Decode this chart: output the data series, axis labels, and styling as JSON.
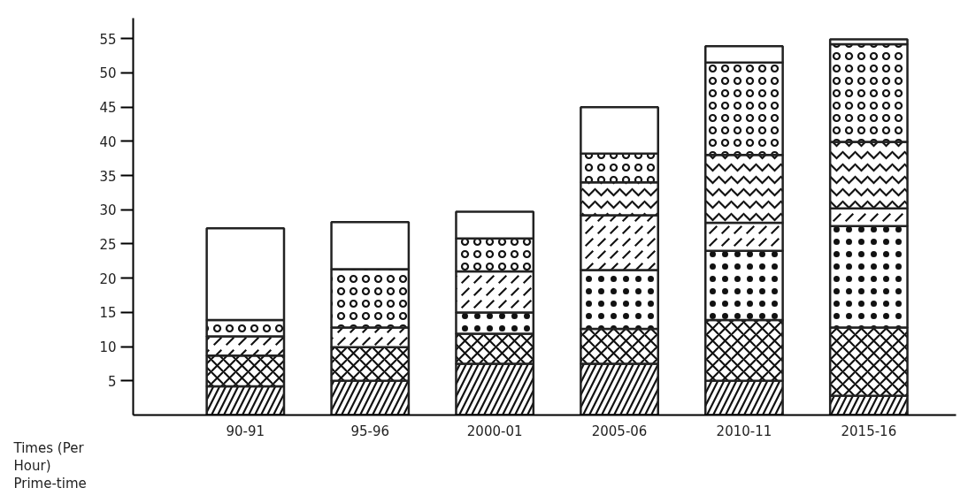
{
  "chart_data": {
    "type": "bar",
    "stacked": true,
    "ylabel": "Times (Per Hour) Prime-time",
    "categories": [
      "90-91",
      "95-96",
      "2000-01",
      "2005-06",
      "2010-11",
      "2015-16"
    ],
    "series": [
      {
        "color": "#ffffff",
        "values": [
          4.2,
          5.0,
          7.5,
          7.5,
          5.0,
          2.8
        ]
      },
      {
        "color": "#ffffff",
        "values": [
          4.5,
          4.9,
          4.4,
          5.1,
          8.9,
          10.0
        ]
      },
      {
        "color": "#ffffff",
        "values": [
          null,
          null,
          3.1,
          8.6,
          10.1,
          14.8
        ]
      },
      {
        "color": "#ffffff",
        "values": [
          2.8,
          2.9,
          6.0,
          8.0,
          4.1,
          2.6
        ]
      },
      {
        "color": "#ffffff",
        "values": [
          null,
          null,
          null,
          4.8,
          9.9,
          9.7
        ]
      },
      {
        "color": "#ffffff",
        "values": [
          2.4,
          8.5,
          4.8,
          4.2,
          13.5,
          14.3
        ]
      },
      {
        "color": "#ffffff",
        "values": [
          13.4,
          6.9,
          3.9,
          6.8,
          2.4,
          0.7
        ]
      }
    ],
    "ylim": [
      0,
      58
    ],
    "yticks": [
      5,
      10,
      15,
      20,
      25,
      30,
      35,
      40,
      45,
      50,
      55
    ]
  }
}
